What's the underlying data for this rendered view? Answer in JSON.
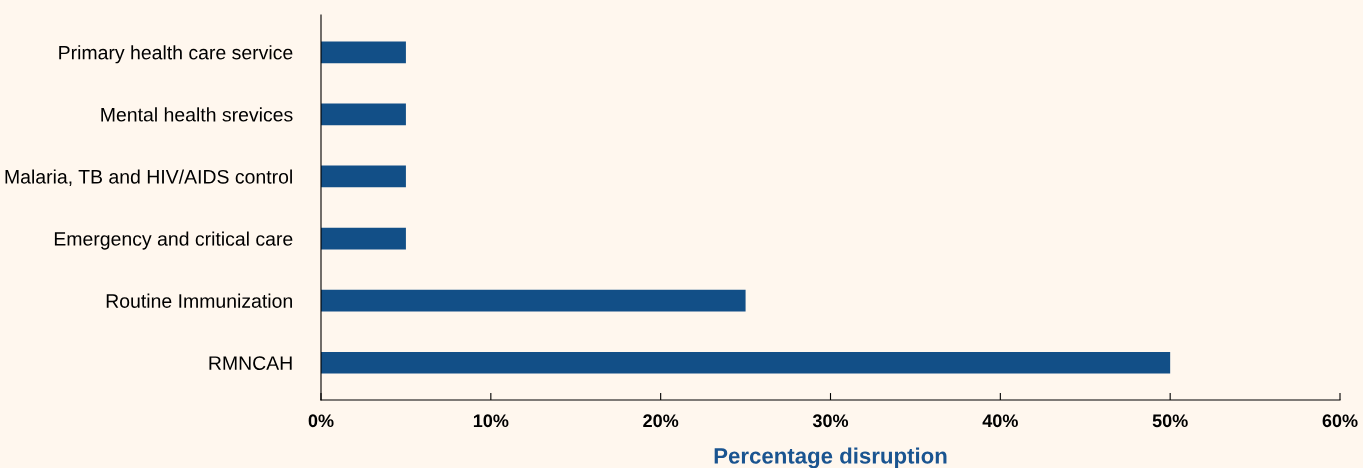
{
  "chart_data": {
    "type": "bar",
    "orientation": "horizontal",
    "xlabel": "Percentage disruption",
    "categories": [
      "Primary health care service",
      "Mental health srevices",
      "Malaria, TB and HIV/AIDS control",
      "Emergency and critical care",
      "Routine Immunization",
      "RMNCAH"
    ],
    "values": [
      5,
      5,
      5,
      5,
      25,
      50
    ],
    "color": "#124f87",
    "xlim": [
      0,
      60
    ],
    "xticks": [
      {
        "value": 0,
        "label": "0%"
      },
      {
        "value": 10,
        "label": "10%"
      },
      {
        "value": 20,
        "label": "20%"
      },
      {
        "value": 30,
        "label": "30%"
      },
      {
        "value": 40,
        "label": "40%"
      },
      {
        "value": 50,
        "label": "50%"
      },
      {
        "value": 60,
        "label": "60%"
      }
    ],
    "grid": false,
    "legend": false
  }
}
